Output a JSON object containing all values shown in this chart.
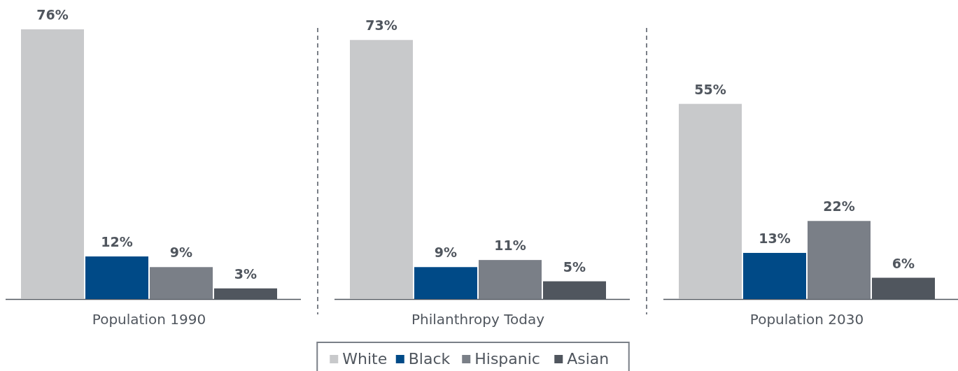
{
  "chart_data": {
    "type": "bar",
    "categories": [
      "Population 1990",
      "Philanthropy Today",
      "Population 2030"
    ],
    "series": [
      {
        "name": "White",
        "color": "#c8c9cb",
        "values": [
          76,
          73,
          55
        ],
        "value_labels": [
          "76%",
          "73%",
          "55%"
        ]
      },
      {
        "name": "Black",
        "color": "#004a87",
        "values": [
          12,
          9,
          13
        ],
        "value_labels": [
          "12%",
          "9%",
          "13%"
        ]
      },
      {
        "name": "Hispanic",
        "color": "#7a7f87",
        "values": [
          9,
          11,
          22
        ],
        "value_labels": [
          "9%",
          "11%",
          "22%"
        ]
      },
      {
        "name": "Asian",
        "color": "#50565e",
        "values": [
          3,
          5,
          6
        ],
        "value_labels": [
          "3%",
          "5%",
          "6%"
        ]
      }
    ],
    "legend": "bottom"
  }
}
